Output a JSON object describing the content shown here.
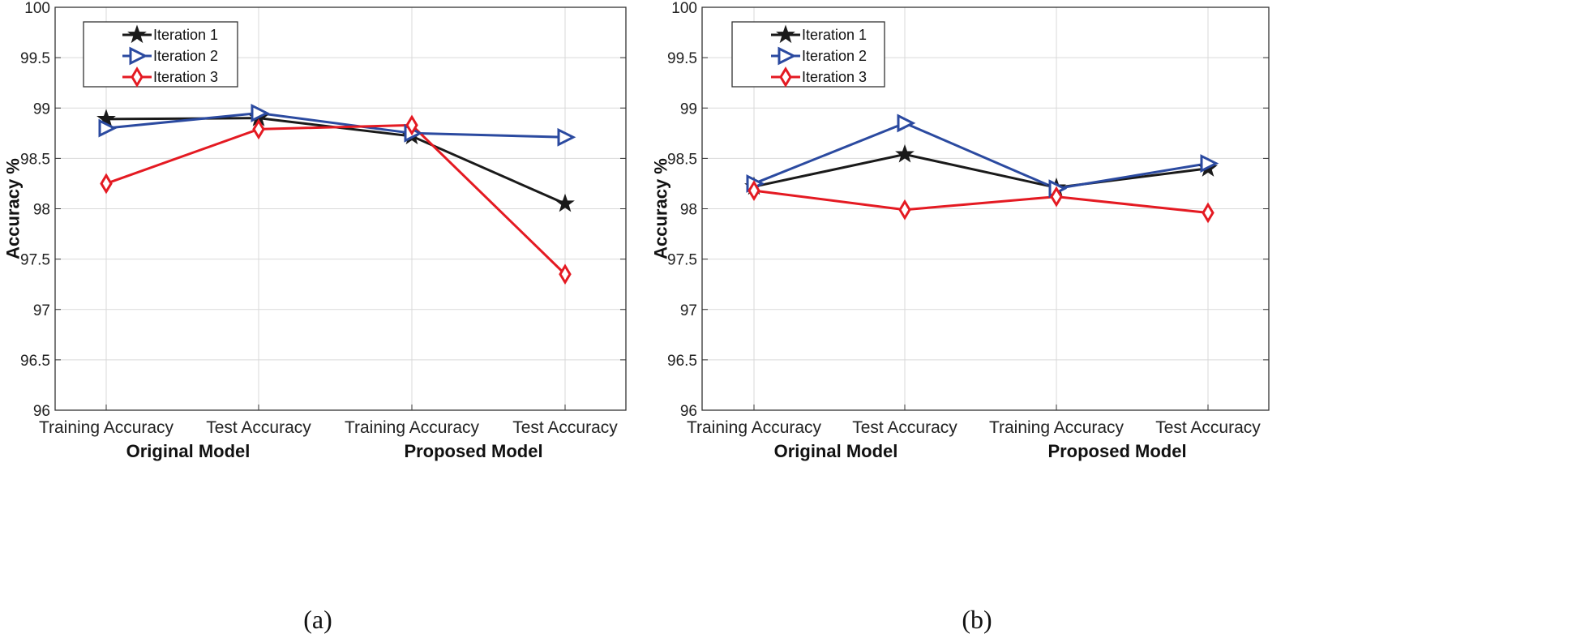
{
  "chart_data": [
    {
      "type": "line",
      "caption": "(a)",
      "ylabel": "Accuracy %",
      "ylim": [
        96,
        100
      ],
      "yticks": [
        "96",
        "96.5",
        "97",
        "97.5",
        "98",
        "98.5",
        "99",
        "99.5",
        "100"
      ],
      "categories": [
        "Training Accuracy",
        "Test Accuracy",
        "Training Accuracy",
        "Test Accuracy"
      ],
      "groups": [
        "Original Model",
        "Proposed Model"
      ],
      "grid": true,
      "legend_position": "top-left",
      "series": [
        {
          "name": "Iteration 1",
          "marker": "star",
          "color": "#1a1a1a",
          "values": [
            98.89,
            98.9,
            98.72,
            98.05
          ]
        },
        {
          "name": "Iteration 2",
          "marker": "triangle-right",
          "color": "#2b4aa0",
          "values": [
            98.8,
            98.95,
            98.75,
            98.71
          ]
        },
        {
          "name": "Iteration 3",
          "marker": "diamond",
          "color": "#e41a22",
          "values": [
            98.25,
            98.79,
            98.83,
            97.35
          ]
        }
      ]
    },
    {
      "type": "line",
      "caption": "(b)",
      "ylabel": "Accuracy %",
      "ylim": [
        96,
        100
      ],
      "yticks": [
        "96",
        "96.5",
        "97",
        "97.5",
        "98",
        "98.5",
        "99",
        "99.5",
        "100"
      ],
      "categories": [
        "Training Accuracy",
        "Test Accuracy",
        "Training Accuracy",
        "Test Accuracy"
      ],
      "groups": [
        "Original Model",
        "Proposed Model"
      ],
      "grid": true,
      "legend_position": "top-left",
      "series": [
        {
          "name": "Iteration 1",
          "marker": "star",
          "color": "#1a1a1a",
          "values": [
            98.22,
            98.54,
            98.21,
            98.4
          ]
        },
        {
          "name": "Iteration 2",
          "marker": "triangle-right",
          "color": "#2b4aa0",
          "values": [
            98.25,
            98.85,
            98.2,
            98.45
          ]
        },
        {
          "name": "Iteration 3",
          "marker": "diamond",
          "color": "#e41a22",
          "values": [
            98.18,
            97.99,
            98.12,
            97.96
          ]
        }
      ]
    }
  ]
}
